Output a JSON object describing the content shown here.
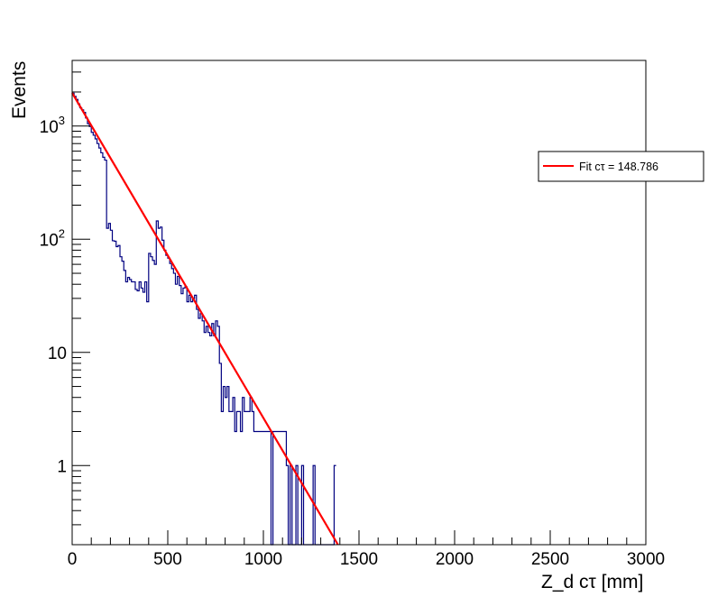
{
  "chart_data": {
    "type": "histogram",
    "title": "",
    "xlabel": "Z_d cτ [mm]",
    "ylabel": "Events",
    "xlim": [
      0,
      3000
    ],
    "ylim": [
      0.2,
      3800
    ],
    "y_scale": "log",
    "x_ticks": [
      0,
      500,
      1000,
      1500,
      2000,
      2500,
      3000
    ],
    "x_tick_labels": [
      "0",
      "500",
      "1000",
      "1500",
      "2000",
      "2500",
      "3000"
    ],
    "y_ticks": [
      1,
      10,
      100,
      1000
    ],
    "y_tick_labels": [
      "1",
      "10",
      "10^2",
      "10^3"
    ],
    "grid": false,
    "legend_position": "right",
    "series": [
      {
        "kind": "histogram",
        "color": "#000080",
        "bin_width": 10,
        "bins": [
          [
            0,
            1950
          ],
          [
            10,
            1830
          ],
          [
            20,
            1720
          ],
          [
            30,
            1570
          ],
          [
            40,
            1450
          ],
          [
            50,
            1390
          ],
          [
            60,
            1320
          ],
          [
            70,
            1180
          ],
          [
            80,
            1050
          ],
          [
            90,
            990
          ],
          [
            100,
            880
          ],
          [
            110,
            830
          ],
          [
            120,
            770
          ],
          [
            130,
            700
          ],
          [
            140,
            640
          ],
          [
            150,
            580
          ],
          [
            160,
            530
          ],
          [
            170,
            500
          ],
          [
            180,
            460
          ],
          [
            190,
            430
          ],
          [
            200,
            400
          ],
          [
            210,
            360
          ],
          [
            220,
            340
          ],
          [
            230,
            310
          ],
          [
            240,
            290
          ],
          [
            250,
            270
          ],
          [
            260,
            240
          ],
          [
            270,
            215
          ],
          [
            280,
            200
          ],
          [
            290,
            185
          ],
          [
            300,
            170
          ],
          [
            310,
            150
          ],
          [
            320,
            140
          ],
          [
            330,
            130
          ],
          [
            340,
            118
          ],
          [
            350,
            110
          ],
          [
            360,
            100
          ],
          [
            370,
            95
          ],
          [
            380,
            90
          ],
          [
            390,
            80
          ],
          [
            400,
            75
          ],
          [
            410,
            70
          ],
          [
            420,
            65
          ],
          [
            430,
            60
          ],
          [
            440,
            55
          ],
          [
            450,
            52
          ],
          [
            460,
            48
          ],
          [
            470,
            42
          ],
          [
            480,
            40
          ],
          [
            490,
            37
          ],
          [
            500,
            34
          ],
          [
            510,
            32
          ],
          [
            520,
            30
          ],
          [
            530,
            27
          ],
          [
            540,
            25
          ],
          [
            550,
            24
          ],
          [
            560,
            22
          ],
          [
            570,
            20
          ],
          [
            580,
            18
          ],
          [
            590,
            17
          ],
          [
            600,
            16
          ],
          [
            610,
            15
          ],
          [
            620,
            13
          ],
          [
            630,
            12
          ],
          [
            640,
            11
          ],
          [
            650,
            11
          ],
          [
            660,
            10
          ],
          [
            670,
            9
          ],
          [
            680,
            9
          ],
          [
            690,
            8
          ],
          [
            700,
            7
          ],
          [
            710,
            7
          ],
          [
            720,
            6
          ],
          [
            730,
            6
          ],
          [
            740,
            5
          ],
          [
            750,
            5
          ],
          [
            760,
            4
          ],
          [
            770,
            4
          ],
          [
            780,
            4
          ],
          [
            790,
            3
          ]
        ],
        "bins_overrides": [
          [
            180,
            125
          ],
          [
            190,
            138
          ],
          [
            200,
            120
          ],
          [
            210,
            97
          ],
          [
            220,
            96
          ],
          [
            230,
            86
          ],
          [
            240,
            88
          ],
          [
            250,
            70
          ],
          [
            260,
            64
          ],
          [
            270,
            53
          ],
          [
            280,
            42
          ],
          [
            290,
            46
          ],
          [
            300,
            44
          ],
          [
            310,
            42
          ],
          [
            320,
            42
          ],
          [
            330,
            36
          ],
          [
            340,
            35
          ],
          [
            350,
            42
          ],
          [
            360,
            37
          ],
          [
            370,
            34
          ],
          [
            380,
            42
          ],
          [
            390,
            28
          ],
          [
            440,
            145
          ],
          [
            450,
            125
          ],
          [
            460,
            128
          ],
          [
            470,
            98
          ],
          [
            480,
            80
          ],
          [
            490,
            72
          ],
          [
            500,
            68
          ],
          [
            510,
            61
          ],
          [
            520,
            55
          ],
          [
            530,
            50
          ],
          [
            540,
            40
          ],
          [
            550,
            47
          ],
          [
            560,
            39
          ],
          [
            570,
            33
          ],
          [
            580,
            37
          ],
          [
            590,
            38
          ],
          [
            600,
            28
          ],
          [
            610,
            32
          ],
          [
            620,
            28
          ],
          [
            630,
            30
          ],
          [
            640,
            32
          ],
          [
            650,
            24
          ],
          [
            660,
            20
          ],
          [
            670,
            22
          ],
          [
            680,
            19
          ],
          [
            690,
            15
          ],
          [
            700,
            17
          ],
          [
            710,
            15
          ],
          [
            720,
            14
          ],
          [
            730,
            18
          ],
          [
            740,
            14
          ],
          [
            750,
            19
          ],
          [
            760,
            17
          ],
          [
            770,
            8
          ],
          [
            780,
            3
          ],
          [
            790,
            5
          ],
          [
            800,
            4
          ],
          [
            810,
            5
          ],
          [
            820,
            3
          ],
          [
            830,
            3
          ],
          [
            840,
            4
          ],
          [
            850,
            2
          ],
          [
            860,
            3
          ],
          [
            870,
            3
          ],
          [
            880,
            2
          ],
          [
            890,
            4
          ],
          [
            900,
            3
          ],
          [
            910,
            3
          ],
          [
            920,
            3
          ],
          [
            930,
            4
          ],
          [
            940,
            3
          ],
          [
            950,
            2
          ],
          [
            960,
            2
          ],
          [
            970,
            2
          ],
          [
            980,
            2
          ],
          [
            990,
            2
          ],
          [
            1000,
            2
          ],
          [
            1010,
            2
          ],
          [
            1020,
            2
          ],
          [
            1030,
            2
          ],
          [
            1040,
            0.15
          ],
          [
            1050,
            2
          ],
          [
            1060,
            2
          ],
          [
            1070,
            2
          ],
          [
            1080,
            2
          ],
          [
            1090,
            2
          ],
          [
            1100,
            2
          ],
          [
            1110,
            2
          ],
          [
            1120,
            1
          ],
          [
            1130,
            0.15
          ],
          [
            1140,
            1
          ],
          [
            1150,
            0.15
          ],
          [
            1160,
            0.15
          ],
          [
            1170,
            1
          ],
          [
            1180,
            0.15
          ],
          [
            1190,
            0.15
          ],
          [
            1200,
            1
          ],
          [
            1210,
            0.15
          ],
          [
            1220,
            0.15
          ],
          [
            1230,
            0.15
          ],
          [
            1240,
            0.15
          ],
          [
            1250,
            0.15
          ],
          [
            1260,
            1
          ],
          [
            1270,
            0.15
          ],
          [
            1280,
            0.15
          ],
          [
            1290,
            0.15
          ],
          [
            1300,
            0.15
          ],
          [
            1310,
            0.15
          ],
          [
            1320,
            0.15
          ],
          [
            1330,
            0.15
          ],
          [
            1340,
            0.15
          ],
          [
            1350,
            0.15
          ],
          [
            1360,
            0.15
          ],
          [
            1370,
            1
          ]
        ]
      },
      {
        "kind": "line",
        "name": "Fit cτ = 148.786",
        "color": "#ff0000",
        "x": [
          0,
          1390
        ],
        "y": [
          1960,
          0.2
        ],
        "ctau": 148.786
      }
    ]
  },
  "legend": {
    "entries": [
      {
        "label": "Fit cτ = 148.786",
        "color": "#ff0000"
      }
    ]
  }
}
